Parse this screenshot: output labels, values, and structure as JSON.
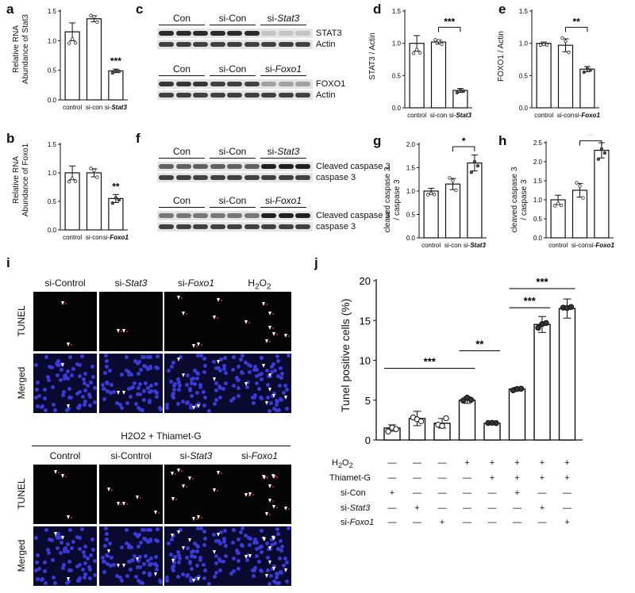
{
  "panels": {
    "a": {
      "label": "a",
      "ylabel": [
        "Relative RNA",
        "Abundance of Stat3"
      ],
      "ticks": [
        "0.0",
        "0.5",
        "1.0",
        "1.5"
      ],
      "xlabels": [
        "control",
        "si-con",
        "si-Stat3"
      ],
      "sig": "***"
    },
    "b": {
      "label": "b",
      "ylabel": [
        "Relative RNA",
        "Abundance of Foxo1"
      ],
      "ticks": [
        "0.0",
        "0.5",
        "1.0",
        "1.5"
      ],
      "xlabels": [
        "control",
        "si-con",
        "si-Foxo1"
      ],
      "sig": "**"
    },
    "c": {
      "label": "c",
      "groups1": [
        "Con",
        "si-Con",
        "si-Stat3"
      ],
      "bands1": [
        "STAT3",
        "Actin"
      ],
      "groups2": [
        "Con",
        "si-Con",
        "si-Foxo1"
      ],
      "bands2": [
        "FOXO1",
        "Actin"
      ]
    },
    "d": {
      "label": "d",
      "ylabel": "STAT3 / Actin",
      "ticks": [
        "0.0",
        "0.5",
        "1.0",
        "1.5"
      ],
      "xlabels": [
        "control",
        "si-con",
        "si-Stat3"
      ],
      "sig": "***"
    },
    "e": {
      "label": "e",
      "ylabel": "FOXO1 / Actin",
      "ticks": [
        "0.0",
        "0.5",
        "1.0",
        "1.5"
      ],
      "xlabels": [
        "control",
        "si-con",
        "si-Foxo1"
      ],
      "sig": "**"
    },
    "f": {
      "label": "f",
      "groups1": [
        "Con",
        "si-Con",
        "si-Stat3"
      ],
      "bands1": [
        "Cleaved caspase 3",
        "caspase 3"
      ],
      "groups2": [
        "Con",
        "si-Con",
        "si-Foxo1"
      ],
      "bands2": [
        "Cleaved caspase 3",
        "caspase 3"
      ]
    },
    "g": {
      "label": "g",
      "ylabel": [
        "cleaved caspase 3",
        "/ caspase 3"
      ],
      "ticks": [
        "0.0",
        "0.5",
        "1.0",
        "1.5",
        "2.0"
      ],
      "xlabels": [
        "control",
        "si-con",
        "si-Stat3"
      ],
      "sig": "*"
    },
    "h": {
      "label": "h",
      "ylabel": [
        "cleaved caspase 3",
        "/ caspase 3"
      ],
      "ticks": [
        "0.0",
        "0.5",
        "1.0",
        "1.5",
        "2.0",
        "2.5"
      ],
      "xlabels": [
        "control",
        "si-con",
        "si-Foxo1"
      ],
      "sig": "**"
    },
    "i": {
      "label": "i",
      "cols_top": [
        "si-Control",
        "si-Stat3",
        "si-Foxo1",
        "H2O2"
      ],
      "rows": [
        "TUNEL",
        "Merged"
      ],
      "subtitle": "H2O2 + Thiamet-G",
      "cols_bottom": [
        "Control",
        "si-Control",
        "si-Stat3",
        "si-Foxo1"
      ]
    },
    "j": {
      "label": "j",
      "ylabel": "Tunel positive cells (%)",
      "ticks": [
        "0",
        "5",
        "10",
        "15",
        "20"
      ],
      "sig": [
        "***",
        "**",
        "***",
        "***"
      ],
      "conditions": [
        "H2O2",
        "Thiamet-G",
        "si-Con",
        "si-Stat3",
        "si-Foxo1"
      ],
      "matrix": [
        [
          "—",
          "—",
          "—",
          "+",
          "+",
          "+",
          "+",
          "+"
        ],
        [
          "—",
          "—",
          "—",
          "—",
          "+",
          "+",
          "+",
          "+"
        ],
        [
          "+",
          "—",
          "—",
          "—",
          "—",
          "+",
          "—",
          "—"
        ],
        [
          "—",
          "+",
          "—",
          "—",
          "—",
          "—",
          "+",
          "—"
        ],
        [
          "—",
          "—",
          "+",
          "—",
          "—",
          "—",
          "—",
          "+"
        ]
      ]
    }
  },
  "chart_data": [
    {
      "panel": "a",
      "type": "bar",
      "categories": [
        "control",
        "si-con",
        "si-Stat3"
      ],
      "values": [
        1.15,
        1.37,
        0.49
      ],
      "errors": [
        0.15,
        0.05,
        0.03
      ],
      "ylim": [
        0,
        1.5
      ],
      "ylabel": "Relative RNA Abundance of Stat3"
    },
    {
      "panel": "b",
      "type": "bar",
      "categories": [
        "control",
        "si-con",
        "si-Foxo1"
      ],
      "values": [
        1.0,
        1.0,
        0.55
      ],
      "errors": [
        0.12,
        0.07,
        0.07
      ],
      "ylim": [
        0,
        1.5
      ],
      "ylabel": "Relative RNA Abundance of Foxo1"
    },
    {
      "panel": "d",
      "type": "bar",
      "categories": [
        "control",
        "si-con",
        "si-Stat3"
      ],
      "values": [
        1.0,
        1.02,
        0.27
      ],
      "errors": [
        0.12,
        0.03,
        0.03
      ],
      "ylim": [
        0,
        1.5
      ],
      "ylabel": "STAT3 / Actin"
    },
    {
      "panel": "e",
      "type": "bar",
      "categories": [
        "control",
        "si-con",
        "si-Foxo1"
      ],
      "values": [
        1.0,
        0.97,
        0.6
      ],
      "errors": [
        0.02,
        0.1,
        0.04
      ],
      "ylim": [
        0,
        1.5
      ],
      "ylabel": "FOXO1 / Actin"
    },
    {
      "panel": "g",
      "type": "bar",
      "categories": [
        "control",
        "si-con",
        "si-Stat3"
      ],
      "values": [
        1.0,
        1.15,
        1.6
      ],
      "errors": [
        0.06,
        0.12,
        0.17
      ],
      "ylim": [
        0,
        2.0
      ],
      "ylabel": "cleaved caspase 3 / caspase 3"
    },
    {
      "panel": "h",
      "type": "bar",
      "categories": [
        "control",
        "si-con",
        "si-Foxo1"
      ],
      "values": [
        1.0,
        1.25,
        2.3
      ],
      "errors": [
        0.12,
        0.18,
        0.2
      ],
      "ylim": [
        0,
        2.5
      ],
      "ylabel": "cleaved caspase 3 / caspase 3"
    },
    {
      "panel": "j",
      "type": "bar",
      "categories": [
        "1",
        "2",
        "3",
        "4",
        "5",
        "6",
        "7",
        "8"
      ],
      "values": [
        1.5,
        2.7,
        2.1,
        5.0,
        2.1,
        6.4,
        14.5,
        16.5
      ],
      "errors": [
        0.4,
        0.9,
        0.6,
        0.4,
        0.1,
        0.2,
        1.0,
        1.2
      ],
      "ylim": [
        0,
        20
      ],
      "ylabel": "Tunel positive cells (%)"
    }
  ]
}
